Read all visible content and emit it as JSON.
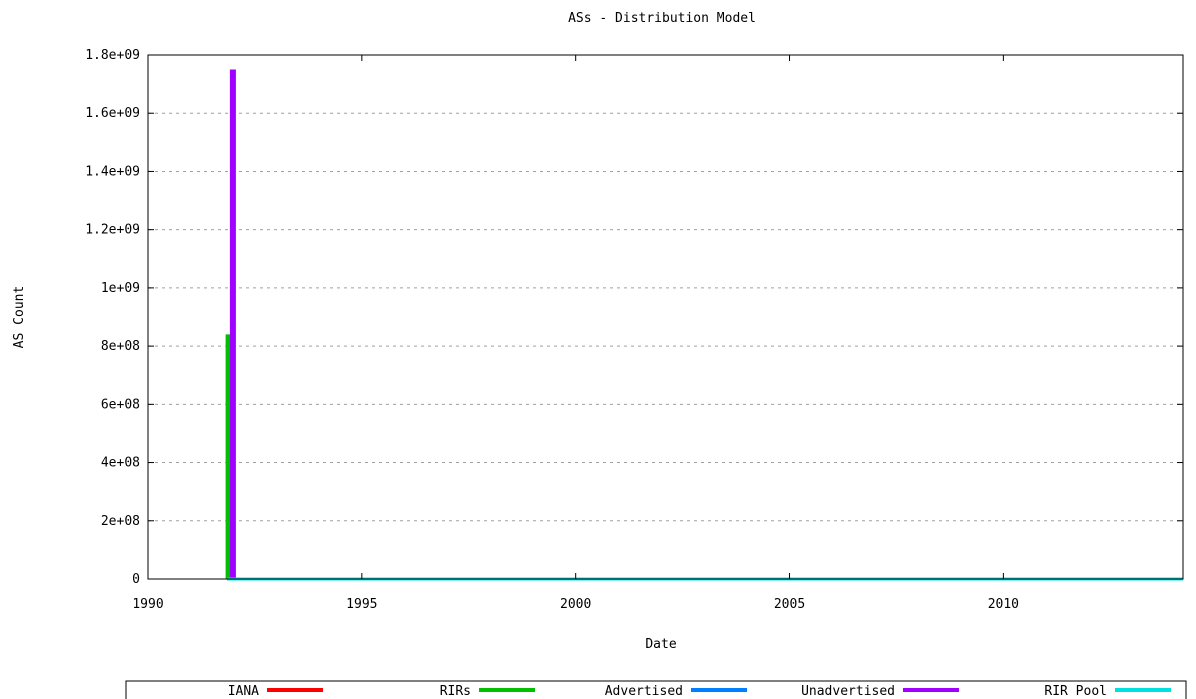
{
  "chart_data": {
    "type": "line",
    "title": "ASs - Distribution Model",
    "xlabel": "Date",
    "ylabel": "AS Count",
    "xlim": [
      1990,
      2014.2
    ],
    "ylim": [
      0,
      1800000000
    ],
    "x_ticks": [
      {
        "value": 1990,
        "label": "1990"
      },
      {
        "value": 1995,
        "label": "1995"
      },
      {
        "value": 2000,
        "label": "2000"
      },
      {
        "value": 2005,
        "label": "2005"
      },
      {
        "value": 2010,
        "label": "2010"
      }
    ],
    "y_ticks": [
      {
        "value": 0,
        "label": "0"
      },
      {
        "value": 200000000,
        "label": "2e+08"
      },
      {
        "value": 400000000,
        "label": "4e+08"
      },
      {
        "value": 600000000,
        "label": "6e+08"
      },
      {
        "value": 800000000,
        "label": "8e+08"
      },
      {
        "value": 1000000000,
        "label": "1e+09"
      },
      {
        "value": 1200000000,
        "label": "1.2e+09"
      },
      {
        "value": 1400000000,
        "label": "1.4e+09"
      },
      {
        "value": 1600000000,
        "label": "1.6e+09"
      },
      {
        "value": 1800000000,
        "label": "1.8e+09"
      }
    ],
    "grid": "dashed horizontal",
    "legend_position": "bottom",
    "series": [
      {
        "name": "IANA",
        "color": "#ff0000",
        "points": [
          [
            1991.85,
            0
          ],
          [
            2014.2,
            0
          ]
        ]
      },
      {
        "name": "RIRs",
        "color": "#00c000",
        "points": [
          [
            1991.85,
            0
          ],
          [
            1991.85,
            835000000
          ],
          [
            1991.9,
            835000000
          ],
          [
            1991.9,
            0
          ],
          [
            2014.2,
            0
          ]
        ]
      },
      {
        "name": "Advertised",
        "color": "#0080ff",
        "points": [
          [
            1991.85,
            0
          ],
          [
            2014.2,
            0
          ]
        ]
      },
      {
        "name": "Unadvertised",
        "color": "#a000ff",
        "points": [
          [
            1991.95,
            0
          ],
          [
            1991.95,
            1745000000
          ],
          [
            1992.02,
            1745000000
          ],
          [
            1992.02,
            0
          ],
          [
            2014.2,
            0
          ]
        ]
      },
      {
        "name": "RIR Pool",
        "color": "#00e0e0",
        "points": [
          [
            1991.85,
            0
          ],
          [
            2014.2,
            0
          ]
        ]
      }
    ]
  }
}
